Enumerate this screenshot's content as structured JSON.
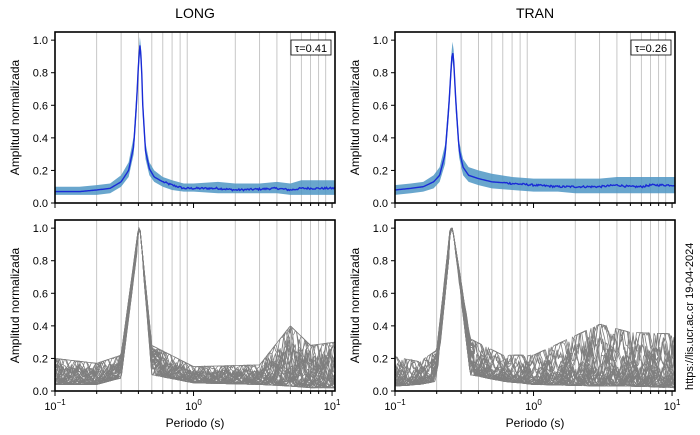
{
  "figure": {
    "credit": "https://lis.ucr.ac.cr 19-04-2024",
    "colors": {
      "mean_line": "#1a2bd6",
      "band": "#4f97c4",
      "individual": "#7f7f7f",
      "grid": "#b9b9b9",
      "axis": "#000000"
    }
  },
  "chart_data": [
    {
      "id": "long-mean",
      "type": "line",
      "scale_x": "log",
      "title": "LONG",
      "xlabel": "",
      "ylabel": "Amplitud normalizada",
      "xlim": [
        0.1,
        10.5
      ],
      "ylim": [
        0.0,
        1.05
      ],
      "yticks": [
        "0.0",
        "0.2",
        "0.4",
        "0.6",
        "0.8",
        "1.0"
      ],
      "xticks": [],
      "annotation": "τ=0.41",
      "peak_period": 0.41,
      "x": [
        0.1,
        0.15,
        0.2,
        0.25,
        0.3,
        0.34,
        0.37,
        0.39,
        0.4,
        0.41,
        0.42,
        0.43,
        0.45,
        0.48,
        0.52,
        0.6,
        0.7,
        0.85,
        1.0,
        1.5,
        2.0,
        3.0,
        4.0,
        5.0,
        6.0,
        7.0,
        8.0,
        9.0,
        10.5
      ],
      "series": [
        {
          "values": [
            0.07,
            0.07,
            0.08,
            0.09,
            0.13,
            0.2,
            0.35,
            0.65,
            0.85,
            0.97,
            0.88,
            0.6,
            0.32,
            0.21,
            0.16,
            0.13,
            0.11,
            0.09,
            0.09,
            0.09,
            0.08,
            0.085,
            0.09,
            0.08,
            0.09,
            0.09,
            0.09,
            0.09,
            0.09
          ],
          "band_low": [
            0.05,
            0.05,
            0.05,
            0.06,
            0.1,
            0.16,
            0.3,
            0.58,
            0.8,
            0.92,
            0.83,
            0.54,
            0.27,
            0.17,
            0.13,
            0.1,
            0.08,
            0.07,
            0.07,
            0.06,
            0.06,
            0.06,
            0.06,
            0.05,
            0.05,
            0.05,
            0.05,
            0.05,
            0.05
          ],
          "band_high": [
            0.1,
            0.1,
            0.11,
            0.12,
            0.17,
            0.25,
            0.41,
            0.72,
            0.9,
            1.02,
            0.93,
            0.66,
            0.37,
            0.25,
            0.2,
            0.16,
            0.14,
            0.12,
            0.12,
            0.13,
            0.12,
            0.12,
            0.13,
            0.12,
            0.14,
            0.14,
            0.14,
            0.14,
            0.14
          ]
        }
      ]
    },
    {
      "id": "tran-mean",
      "type": "line",
      "scale_x": "log",
      "title": "TRAN",
      "xlabel": "",
      "ylabel": "Amplitud normalizada",
      "xlim": [
        0.1,
        10.5
      ],
      "ylim": [
        0.0,
        1.05
      ],
      "yticks": [
        "0.0",
        "0.2",
        "0.4",
        "0.6",
        "0.8",
        "1.0"
      ],
      "xticks": [],
      "annotation": "τ=0.26",
      "peak_period": 0.26,
      "x": [
        0.1,
        0.13,
        0.16,
        0.19,
        0.21,
        0.23,
        0.245,
        0.255,
        0.26,
        0.265,
        0.275,
        0.29,
        0.31,
        0.34,
        0.4,
        0.5,
        0.7,
        1.0,
        1.5,
        2.0,
        3.0,
        4.0,
        5.0,
        6.0,
        7.0,
        8.0,
        9.0,
        10.5
      ],
      "series": [
        {
          "values": [
            0.08,
            0.09,
            0.1,
            0.13,
            0.17,
            0.3,
            0.6,
            0.85,
            0.94,
            0.88,
            0.62,
            0.33,
            0.22,
            0.17,
            0.15,
            0.13,
            0.12,
            0.11,
            0.1,
            0.1,
            0.1,
            0.11,
            0.1,
            0.1,
            0.11,
            0.11,
            0.11,
            0.11
          ],
          "band_low": [
            0.05,
            0.06,
            0.07,
            0.09,
            0.13,
            0.24,
            0.54,
            0.78,
            0.88,
            0.82,
            0.55,
            0.28,
            0.17,
            0.13,
            0.11,
            0.09,
            0.08,
            0.07,
            0.07,
            0.06,
            0.06,
            0.06,
            0.06,
            0.06,
            0.06,
            0.06,
            0.06,
            0.06
          ],
          "band_high": [
            0.11,
            0.12,
            0.13,
            0.17,
            0.22,
            0.36,
            0.66,
            0.91,
            0.99,
            0.94,
            0.68,
            0.38,
            0.27,
            0.22,
            0.2,
            0.18,
            0.16,
            0.15,
            0.15,
            0.15,
            0.15,
            0.16,
            0.16,
            0.16,
            0.16,
            0.16,
            0.16,
            0.16
          ]
        }
      ]
    },
    {
      "id": "long-individual",
      "type": "line",
      "scale_x": "log",
      "title": "",
      "xlabel": "Periodo (s)",
      "ylabel": "Amplitud normalizada",
      "xlim": [
        0.1,
        10.5
      ],
      "ylim": [
        0.0,
        1.05
      ],
      "yticks": [
        "0.0",
        "0.2",
        "0.4",
        "0.6",
        "0.8",
        "1.0"
      ],
      "xticks": [
        {
          "x": 0.1,
          "base": "10",
          "exp": "−1"
        },
        {
          "x": 1.0,
          "base": "10",
          "exp": "0"
        },
        {
          "x": 10.0,
          "base": "10",
          "exp": "1"
        }
      ],
      "peak_period": 0.41,
      "curve_count": 35,
      "envelope_x": [
        0.1,
        0.2,
        0.3,
        0.4,
        0.41,
        0.5,
        1.0,
        3.0,
        5.0,
        7.0,
        10.5
      ],
      "envelope_low": [
        0.04,
        0.04,
        0.08,
        0.92,
        1.0,
        0.1,
        0.05,
        0.04,
        0.03,
        0.02,
        0.02
      ],
      "envelope_high": [
        0.2,
        0.17,
        0.22,
        1.0,
        1.0,
        0.28,
        0.15,
        0.16,
        0.4,
        0.28,
        0.3
      ]
    },
    {
      "id": "tran-individual",
      "type": "line",
      "scale_x": "log",
      "title": "",
      "xlabel": "Periodo (s)",
      "ylabel": "Amplitud normalizada",
      "xlim": [
        0.1,
        10.5
      ],
      "ylim": [
        0.0,
        1.05
      ],
      "yticks": [
        "0.0",
        "0.2",
        "0.4",
        "0.6",
        "0.8",
        "1.0"
      ],
      "xticks": [
        {
          "x": 0.1,
          "base": "10",
          "exp": "−1"
        },
        {
          "x": 1.0,
          "base": "10",
          "exp": "0"
        },
        {
          "x": 10.0,
          "base": "10",
          "exp": "1"
        }
      ],
      "peak_period": 0.26,
      "curve_count": 35,
      "envelope_x": [
        0.1,
        0.15,
        0.2,
        0.25,
        0.26,
        0.35,
        0.6,
        1.0,
        3.0,
        5.0,
        10.5
      ],
      "envelope_low": [
        0.03,
        0.04,
        0.06,
        0.9,
        1.0,
        0.1,
        0.06,
        0.04,
        0.03,
        0.03,
        0.02
      ],
      "envelope_high": [
        0.21,
        0.18,
        0.25,
        1.0,
        1.0,
        0.32,
        0.22,
        0.22,
        0.41,
        0.36,
        0.35
      ]
    }
  ]
}
